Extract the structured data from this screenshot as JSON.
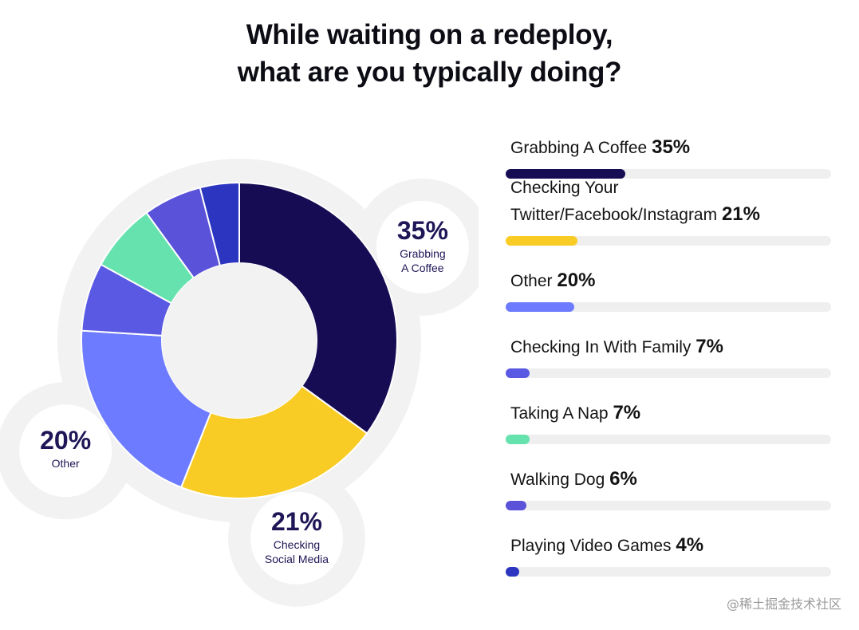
{
  "title_lines": [
    "While waiting on a redeploy,",
    "what are you typically doing?"
  ],
  "chart_data": [
    {
      "type": "pie",
      "title": "While waiting on a redeploy, what are you typically doing?",
      "categories": [
        "Grabbing A Coffee",
        "Checking Social Media",
        "Other",
        "Checking In With Family",
        "Taking A Nap",
        "Walking Dog",
        "Playing Video Games"
      ],
      "values": [
        35,
        21,
        20,
        7,
        7,
        6,
        4
      ],
      "colors": [
        "#160c54",
        "#f9cc25",
        "#6c7bff",
        "#5a59e4",
        "#66e2ae",
        "#5a52d9",
        "#2c35c0"
      ],
      "callouts": [
        {
          "slice": 0,
          "value": "35%",
          "lines": [
            "Grabbing",
            "A Coffee"
          ]
        },
        {
          "slice": 1,
          "value": "21%",
          "lines": [
            "Checking",
            "Social Media"
          ]
        },
        {
          "slice": 2,
          "value": "20%",
          "lines": [
            "Other"
          ]
        }
      ]
    },
    {
      "type": "bar",
      "orientation": "horizontal",
      "categories": [
        "Grabbing A Coffee",
        "Checking Your Twitter/Facebook/Instagram",
        "Other",
        "Checking In With Family",
        "Taking A Nap",
        "Walking Dog",
        "Playing Video Games"
      ],
      "label_lines": [
        [
          "Grabbing A Coffee"
        ],
        [
          "Checking Your",
          "Twitter/Facebook/Instagram"
        ],
        [
          "Other"
        ],
        [
          "Checking In With Family"
        ],
        [
          "Taking A Nap"
        ],
        [
          "Walking Dog"
        ],
        [
          "Playing Video Games"
        ]
      ],
      "value_labels": [
        "35%",
        "21%",
        "20%",
        "7%",
        "7%",
        "6%",
        "4%"
      ],
      "values": [
        35,
        21,
        20,
        7,
        7,
        6,
        4
      ],
      "colors": [
        "#160c54",
        "#f9cc25",
        "#6c7bff",
        "#5a59e4",
        "#66e2ae",
        "#5a52d9",
        "#2c35c0"
      ],
      "xlim": [
        0,
        95
      ]
    }
  ],
  "watermark": "@稀土掘金技术社区"
}
